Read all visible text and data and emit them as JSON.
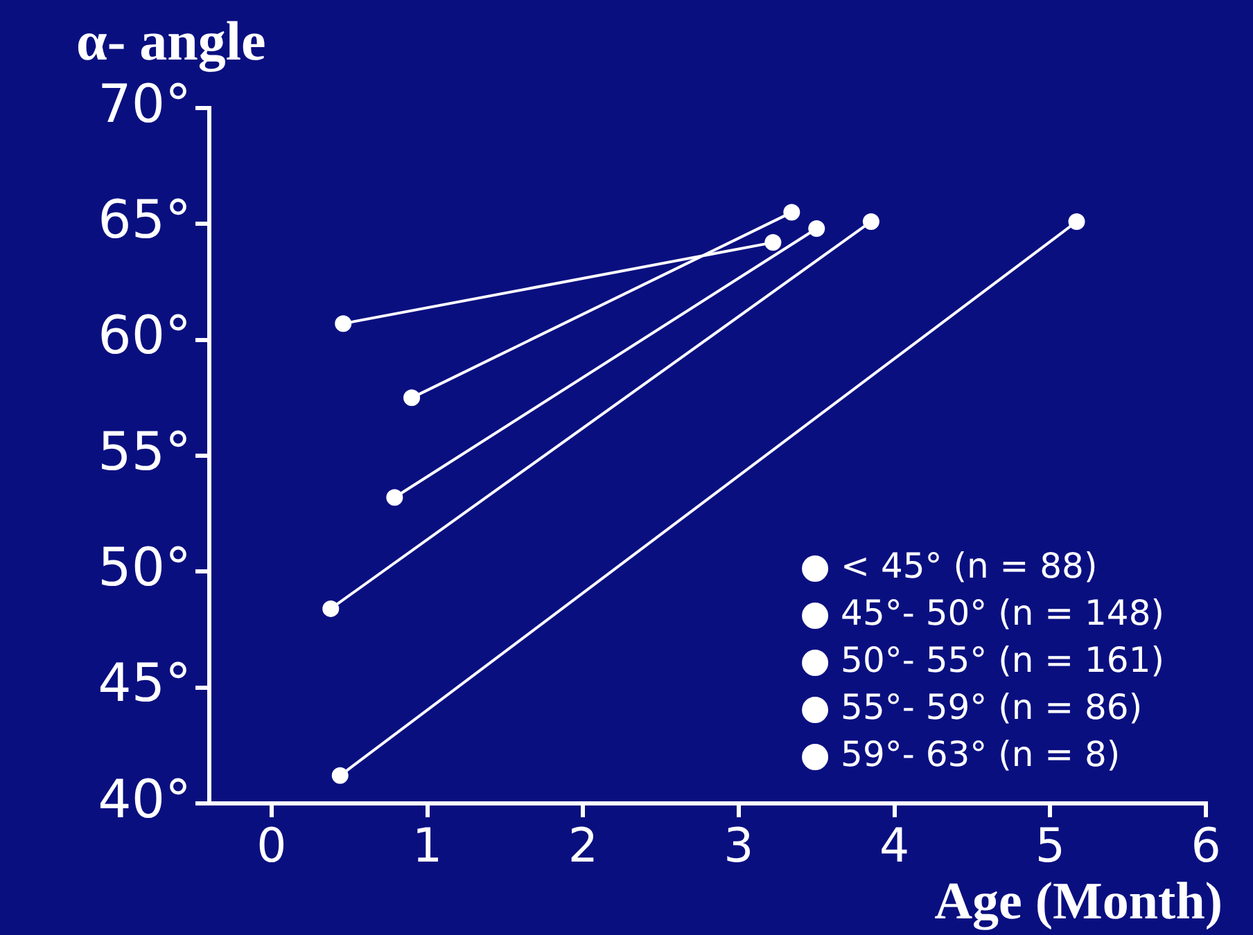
{
  "chart_data": {
    "type": "line",
    "ylabel": "α- angle",
    "xlabel": "Age (Month)",
    "xlim": [
      -0.4,
      6
    ],
    "xticks": [
      0,
      1,
      2,
      3,
      4,
      5,
      6
    ],
    "ylim": [
      40,
      70
    ],
    "yticks": [
      {
        "value": 40,
        "label": "40°"
      },
      {
        "value": 45,
        "label": "45°"
      },
      {
        "value": 50,
        "label": "50°"
      },
      {
        "value": 55,
        "label": "55°"
      },
      {
        "value": 60,
        "label": "60°"
      },
      {
        "value": 65,
        "label": "65°"
      },
      {
        "value": 70,
        "label": "70°"
      }
    ],
    "grid": false,
    "legend": "bottom right",
    "marker": "circle",
    "line_style": "solid",
    "series": [
      {
        "name": "< 45° (n = 88)",
        "color": "#ffffff",
        "x": [
          0.44,
          5.17
        ],
        "values": [
          41.2,
          65.1
        ]
      },
      {
        "name": "45°- 50° (n = 148)",
        "color": "#ffffff",
        "x": [
          0.38,
          3.85
        ],
        "values": [
          48.4,
          65.1
        ]
      },
      {
        "name": "50°- 55° (n = 161)",
        "color": "#ffffff",
        "x": [
          0.79,
          3.5
        ],
        "values": [
          53.2,
          64.8
        ]
      },
      {
        "name": "55°- 59° (n = 86)",
        "color": "#ffffff",
        "x": [
          0.9,
          3.34
        ],
        "values": [
          57.5,
          65.5
        ]
      },
      {
        "name": "59°- 63° (n = 8)",
        "color": "#ffffff",
        "x": [
          0.46,
          3.22
        ],
        "values": [
          60.7,
          64.2
        ]
      }
    ]
  }
}
